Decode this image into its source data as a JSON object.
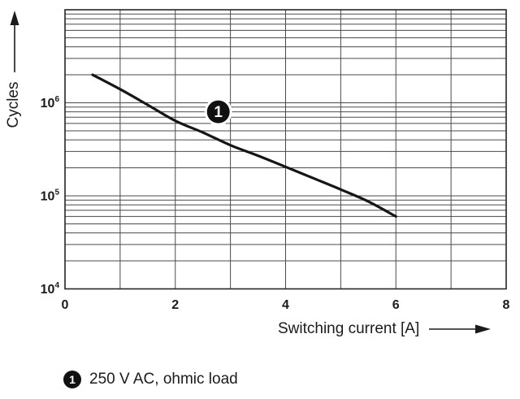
{
  "chart_data": {
    "type": "line",
    "title": "",
    "xlabel": "Switching current [A]",
    "ylabel": "Cycles",
    "grid": true,
    "legend_position": "below-left",
    "x_axis": {
      "min": 0,
      "max": 8,
      "tick_values": [
        0,
        2,
        4,
        6,
        8
      ],
      "tick_labels": [
        "0",
        "2",
        "4",
        "6",
        "8"
      ],
      "grid_step": 1
    },
    "y_axis": {
      "scale": "log",
      "min": 10000,
      "max": 10000000,
      "label_base": "10",
      "tick_values": [
        10000,
        100000,
        1000000
      ],
      "tick_exponents": [
        "4",
        "5",
        "6"
      ]
    },
    "series": [
      {
        "name": "250 V AC, ohmic load",
        "marker_label": "1",
        "x": [
          0.5,
          1,
          1.5,
          2,
          2.5,
          3,
          3.5,
          4,
          4.5,
          5,
          5.5,
          6
        ],
        "y": [
          2000000,
          1400000,
          950000,
          640000,
          480000,
          350000,
          270000,
          205000,
          155000,
          117000,
          87000,
          60000
        ]
      }
    ],
    "callout": {
      "label": "1",
      "x": 2.78,
      "y": 800000
    },
    "colors": {
      "background": "#ffffff",
      "grid": "#4a4a4a",
      "axis": "#262626",
      "text": "#1b1b1b",
      "curve": "#161616",
      "marker_bg": "#111111",
      "marker_fg": "#ffffff"
    }
  }
}
